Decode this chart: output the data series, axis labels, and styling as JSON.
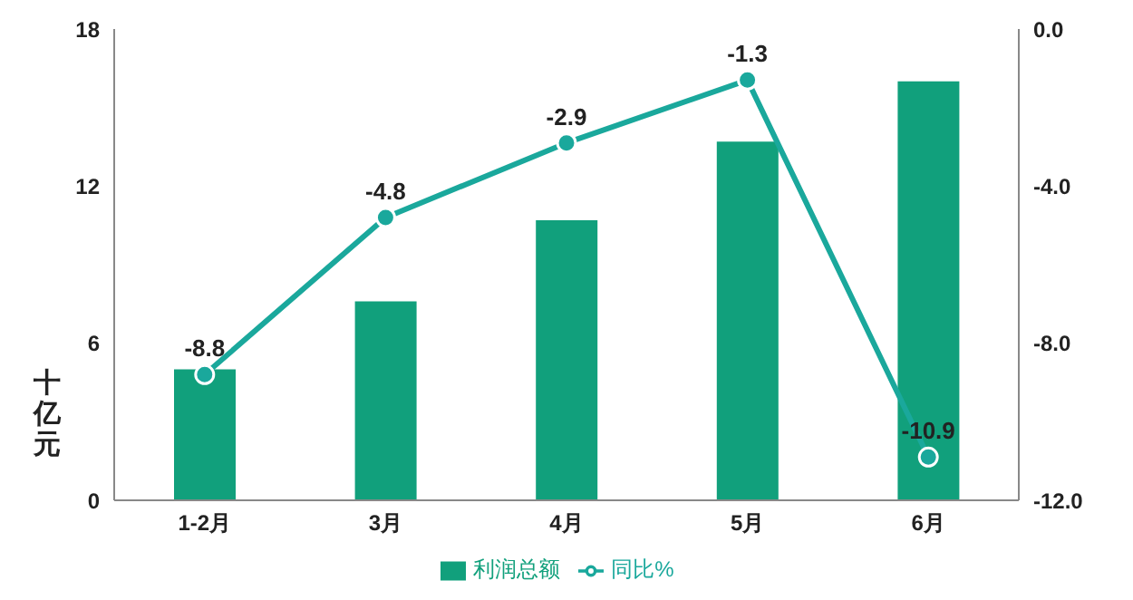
{
  "chart_data": {
    "type": "bar",
    "ylabel": "十亿元",
    "categories": [
      "1-2月",
      "3月",
      "4月",
      "5月",
      "6月"
    ],
    "series": [
      {
        "name": "利润总额",
        "color": "#11a07c",
        "values": [
          5.0,
          7.6,
          10.7,
          13.7,
          16.0
        ]
      },
      {
        "name": "同比%",
        "type": "line",
        "axis": "y2",
        "color": "#1aa89c",
        "marker": "circle",
        "data_labels": true,
        "values": [
          -8.8,
          -4.8,
          -2.9,
          -1.3,
          -10.9
        ]
      }
    ],
    "ylim": [
      0,
      18
    ],
    "yticks": [
      0,
      6,
      12,
      18
    ],
    "y2lim": [
      -12,
      0
    ],
    "y2ticks": [
      {
        "value": -12,
        "label": "-12.0"
      },
      {
        "value": -8,
        "label": "-8.0"
      },
      {
        "value": -4,
        "label": "-4.0"
      },
      {
        "value": 0,
        "label": "0.0"
      }
    ],
    "legend": "bottom",
    "grid": false
  }
}
